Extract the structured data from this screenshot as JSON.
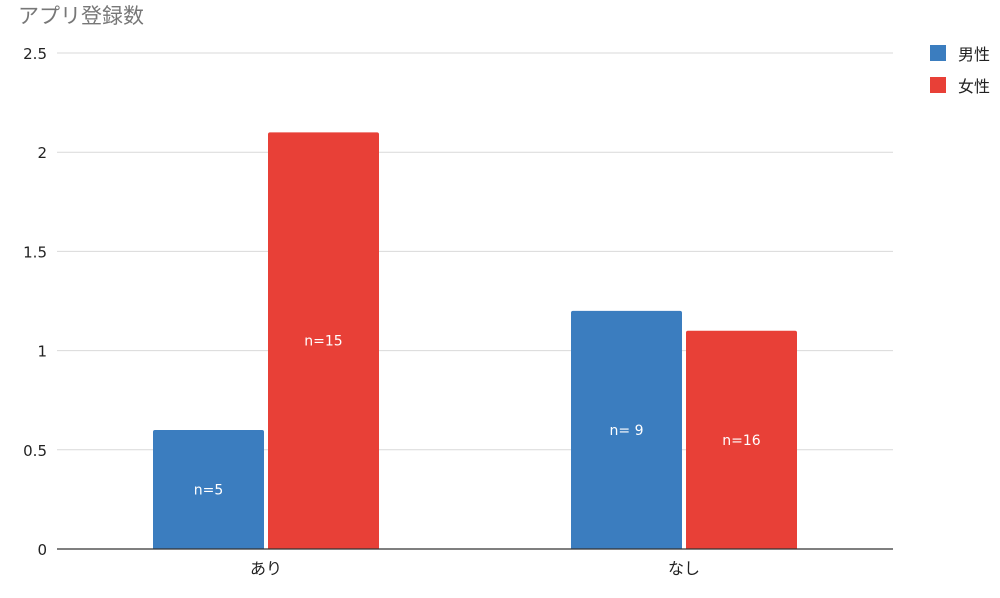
{
  "chart_data": {
    "type": "bar",
    "title": "アプリ登録数",
    "xlabel": "",
    "ylabel": "",
    "categories": [
      "あり",
      "なし"
    ],
    "series": [
      {
        "name": "男性",
        "color": "#3b7dbf",
        "values": [
          0.6,
          1.2
        ],
        "labels": [
          "n=5",
          "n= 9"
        ]
      },
      {
        "name": "女性",
        "color": "#e84037",
        "values": [
          2.1,
          1.1
        ],
        "labels": [
          "n=15",
          "n=16"
        ]
      }
    ],
    "ylim": [
      0,
      2.5
    ],
    "yticks": [
      "0",
      "0.5",
      "1",
      "1.5",
      "2",
      "2.5"
    ],
    "grid": true,
    "legend": "top-right"
  }
}
